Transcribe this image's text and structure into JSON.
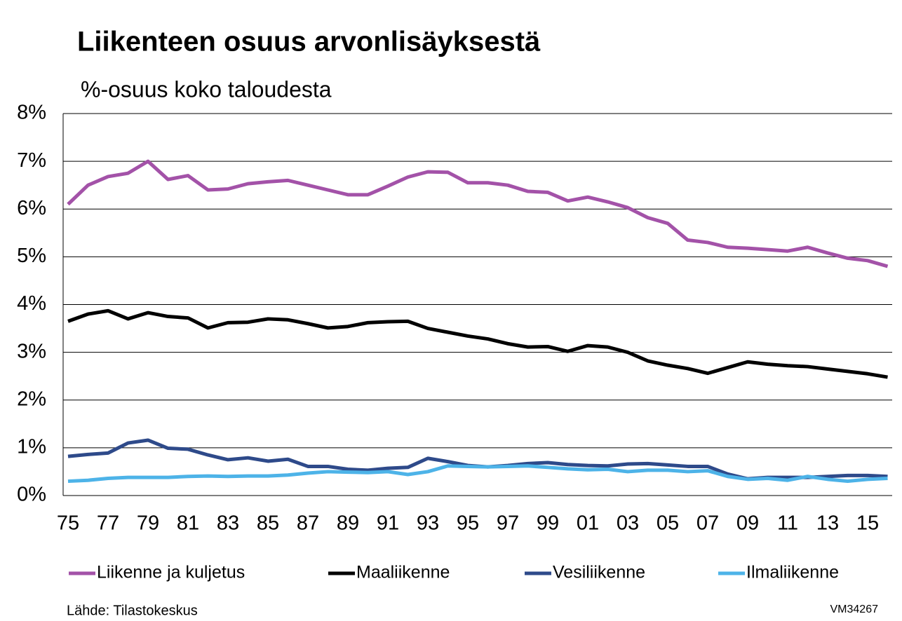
{
  "chart_data": {
    "type": "line",
    "title": "Liikenteen osuus arvonlisäyksestä",
    "subtitle": "%-osuus koko taloudesta",
    "source": "Lähde: Tilastokeskus",
    "code": "VM34267",
    "categories": [
      "75",
      null,
      "77",
      null,
      "79",
      null,
      "81",
      null,
      "83",
      null,
      "85",
      null,
      "87",
      null,
      "89",
      null,
      "91",
      null,
      "93",
      null,
      "95",
      null,
      "97",
      null,
      "99",
      null,
      "01",
      null,
      "03",
      null,
      "05",
      null,
      "07",
      null,
      "09",
      null,
      "11",
      null,
      "13",
      null,
      "15",
      null
    ],
    "series": [
      {
        "name": "Liikenne ja kuljetus",
        "color": "#a352a8",
        "values": [
          6.1,
          6.5,
          6.68,
          6.75,
          7.0,
          6.62,
          6.7,
          6.4,
          6.42,
          6.53,
          6.57,
          6.6,
          6.5,
          6.4,
          6.3,
          6.3,
          6.48,
          6.67,
          6.78,
          6.77,
          6.55,
          6.55,
          6.5,
          6.37,
          6.35,
          6.17,
          6.25,
          6.15,
          6.03,
          5.82,
          5.7,
          5.35,
          5.3,
          5.2,
          5.18,
          5.15,
          5.12,
          5.2,
          5.08,
          4.97,
          4.92,
          4.8
        ]
      },
      {
        "name": "Maaliikenne",
        "color": "#000000",
        "values": [
          3.65,
          3.8,
          3.87,
          3.7,
          3.83,
          3.75,
          3.72,
          3.51,
          3.62,
          3.63,
          3.7,
          3.68,
          3.6,
          3.51,
          3.54,
          3.62,
          3.64,
          3.65,
          3.5,
          3.42,
          3.34,
          3.28,
          3.18,
          3.11,
          3.12,
          3.02,
          3.14,
          3.11,
          3.0,
          2.82,
          2.73,
          2.66,
          2.56,
          2.68,
          2.8,
          2.75,
          2.72,
          2.7,
          2.65,
          2.6,
          2.55,
          2.48
        ]
      },
      {
        "name": "Vesiliikenne",
        "color": "#2e4a8a",
        "values": [
          0.82,
          0.86,
          0.89,
          1.1,
          1.16,
          0.99,
          0.97,
          0.85,
          0.75,
          0.79,
          0.72,
          0.76,
          0.61,
          0.61,
          0.55,
          0.53,
          0.57,
          0.59,
          0.78,
          0.71,
          0.63,
          0.6,
          0.63,
          0.67,
          0.69,
          0.65,
          0.63,
          0.62,
          0.66,
          0.67,
          0.64,
          0.61,
          0.61,
          0.45,
          0.35,
          0.38,
          0.38,
          0.38,
          0.4,
          0.42,
          0.42,
          0.4
        ]
      },
      {
        "name": "Ilmaliikenne",
        "color": "#4db3e8",
        "values": [
          0.3,
          0.32,
          0.36,
          0.38,
          0.38,
          0.38,
          0.4,
          0.41,
          0.4,
          0.41,
          0.41,
          0.43,
          0.47,
          0.5,
          0.49,
          0.48,
          0.5,
          0.44,
          0.5,
          0.62,
          0.61,
          0.6,
          0.61,
          0.62,
          0.59,
          0.56,
          0.54,
          0.55,
          0.5,
          0.53,
          0.53,
          0.5,
          0.52,
          0.4,
          0.34,
          0.36,
          0.32,
          0.4,
          0.34,
          0.3,
          0.34,
          0.36
        ]
      }
    ],
    "ylim": [
      0,
      8
    ],
    "yticks": [
      {
        "value": 0,
        "label": "0%"
      },
      {
        "value": 1,
        "label": "1%"
      },
      {
        "value": 2,
        "label": "2%"
      },
      {
        "value": 3,
        "label": "3%"
      },
      {
        "value": 4,
        "label": "4%"
      },
      {
        "value": 5,
        "label": "5%"
      },
      {
        "value": 6,
        "label": "6%"
      },
      {
        "value": 7,
        "label": "7%"
      },
      {
        "value": 8,
        "label": "8%"
      }
    ],
    "grid": true,
    "legend": "bottom"
  }
}
